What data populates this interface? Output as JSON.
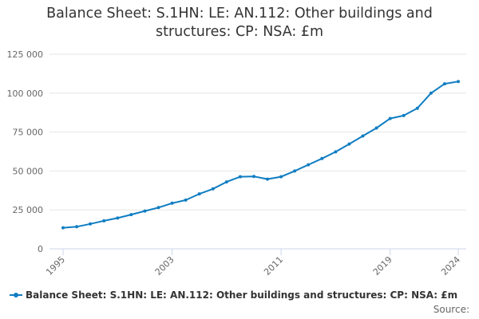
{
  "title_lines": [
    "Balance Sheet: S.1HN: LE: AN.112: Other buildings and",
    "structures: CP: NSA: £m"
  ],
  "source_label": "Source:",
  "colors": {
    "series": "#0f7dc2",
    "grid": "#e6e6e6",
    "axis": "#ccd6eb",
    "text": "#666666"
  },
  "chart_data": {
    "type": "line",
    "title": "Balance Sheet: S.1HN: LE: AN.112: Other buildings and structures: CP: NSA: £m",
    "xlabel": "",
    "ylabel": "",
    "ylim": [
      0,
      125000
    ],
    "yticks": [
      0,
      25000,
      50000,
      75000,
      100000,
      125000
    ],
    "ytick_labels": [
      "0",
      "25 000",
      "50 000",
      "75 000",
      "100 000",
      "125 000"
    ],
    "xlim": [
      1995,
      2024
    ],
    "xticks": [
      1995,
      2003,
      2011,
      2019,
      2024
    ],
    "grid": true,
    "legend_position": "bottom",
    "series": [
      {
        "name": "Balance Sheet: S.1HN: LE: AN.112: Other buildings and structures: CP: NSA: £m",
        "x": [
          1995,
          1996,
          1997,
          1998,
          1999,
          2000,
          2001,
          2002,
          2003,
          2004,
          2005,
          2006,
          2007,
          2008,
          2009,
          2010,
          2011,
          2012,
          2013,
          2014,
          2015,
          2016,
          2017,
          2018,
          2019,
          2020,
          2021,
          2022,
          2023,
          2024
        ],
        "values": [
          13500,
          14200,
          16000,
          18000,
          19800,
          22000,
          24300,
          26500,
          29300,
          31300,
          35300,
          38500,
          43000,
          46300,
          46500,
          44800,
          46300,
          50000,
          54000,
          58000,
          62300,
          67300,
          72500,
          77600,
          83700,
          85600,
          90300,
          100000,
          106000,
          107500
        ]
      }
    ]
  }
}
